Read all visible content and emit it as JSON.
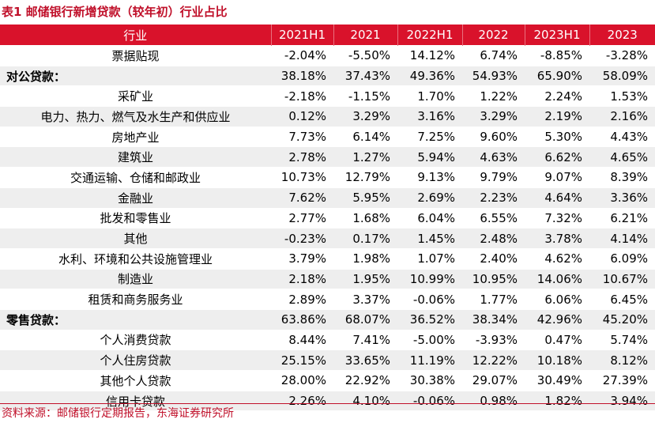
{
  "title": "表1  邮储银行新增贷款（较年初）行业占比",
  "table": {
    "columns": [
      "行业",
      "2021H1",
      "2021",
      "2022H1",
      "2022",
      "2023H1",
      "2023"
    ],
    "rows": [
      {
        "label": "票据贴现",
        "section": false,
        "values": [
          "-2.04%",
          "-5.50%",
          "14.12%",
          "6.74%",
          "-8.85%",
          "-3.28%"
        ]
      },
      {
        "label": "对公贷款：",
        "section": true,
        "values": [
          "38.18%",
          "37.43%",
          "49.36%",
          "54.93%",
          "65.90%",
          "58.09%"
        ]
      },
      {
        "label": "采矿业",
        "section": false,
        "values": [
          "-2.18%",
          "-1.15%",
          "1.70%",
          "1.22%",
          "2.24%",
          "1.53%"
        ]
      },
      {
        "label": "电力、热力、燃气及水生产和供应业",
        "section": false,
        "values": [
          "0.12%",
          "3.29%",
          "3.16%",
          "3.29%",
          "2.19%",
          "2.16%"
        ]
      },
      {
        "label": "房地产业",
        "section": false,
        "values": [
          "7.73%",
          "6.14%",
          "7.25%",
          "9.60%",
          "5.30%",
          "4.43%"
        ]
      },
      {
        "label": "建筑业",
        "section": false,
        "values": [
          "2.78%",
          "1.27%",
          "5.94%",
          "4.63%",
          "6.62%",
          "4.65%"
        ]
      },
      {
        "label": "交通运输、仓储和邮政业",
        "section": false,
        "values": [
          "10.73%",
          "12.79%",
          "9.13%",
          "9.79%",
          "9.07%",
          "8.39%"
        ]
      },
      {
        "label": "金融业",
        "section": false,
        "values": [
          "7.62%",
          "5.95%",
          "2.69%",
          "2.23%",
          "4.64%",
          "3.36%"
        ]
      },
      {
        "label": "批发和零售业",
        "section": false,
        "values": [
          "2.77%",
          "1.68%",
          "6.04%",
          "6.55%",
          "7.32%",
          "6.21%"
        ]
      },
      {
        "label": "其他",
        "section": false,
        "values": [
          "-0.23%",
          "0.17%",
          "1.45%",
          "2.48%",
          "3.78%",
          "4.14%"
        ]
      },
      {
        "label": "水利、环境和公共设施管理业",
        "section": false,
        "values": [
          "3.79%",
          "1.98%",
          "1.07%",
          "2.40%",
          "4.62%",
          "6.09%"
        ]
      },
      {
        "label": "制造业",
        "section": false,
        "values": [
          "2.18%",
          "1.95%",
          "10.99%",
          "10.95%",
          "14.06%",
          "10.67%"
        ]
      },
      {
        "label": "租赁和商务服务业",
        "section": false,
        "values": [
          "2.89%",
          "3.37%",
          "-0.06%",
          "1.77%",
          "6.06%",
          "6.45%"
        ]
      },
      {
        "label": "零售贷款：",
        "section": true,
        "values": [
          "63.86%",
          "68.07%",
          "36.52%",
          "38.34%",
          "42.96%",
          "45.20%"
        ]
      },
      {
        "label": "个人消费贷款",
        "section": false,
        "values": [
          "8.44%",
          "7.41%",
          "-5.00%",
          "-3.93%",
          "0.47%",
          "5.74%"
        ]
      },
      {
        "label": "个人住房贷款",
        "section": false,
        "values": [
          "25.15%",
          "33.65%",
          "11.19%",
          "12.22%",
          "10.18%",
          "8.12%"
        ]
      },
      {
        "label": "其他个人贷款",
        "section": false,
        "values": [
          "28.00%",
          "22.92%",
          "30.38%",
          "29.07%",
          "30.49%",
          "27.39%"
        ]
      },
      {
        "label": "信用卡贷款",
        "section": false,
        "values": [
          "2.26%",
          "4.10%",
          "-0.06%",
          "0.98%",
          "1.82%",
          "3.94%"
        ]
      }
    ]
  },
  "source": "资料来源：邮储银行定期报告，东海证券研究所",
  "colors": {
    "accent": "#d9122b",
    "title_text": "#c0102a",
    "stripe": "#eeeeee"
  }
}
